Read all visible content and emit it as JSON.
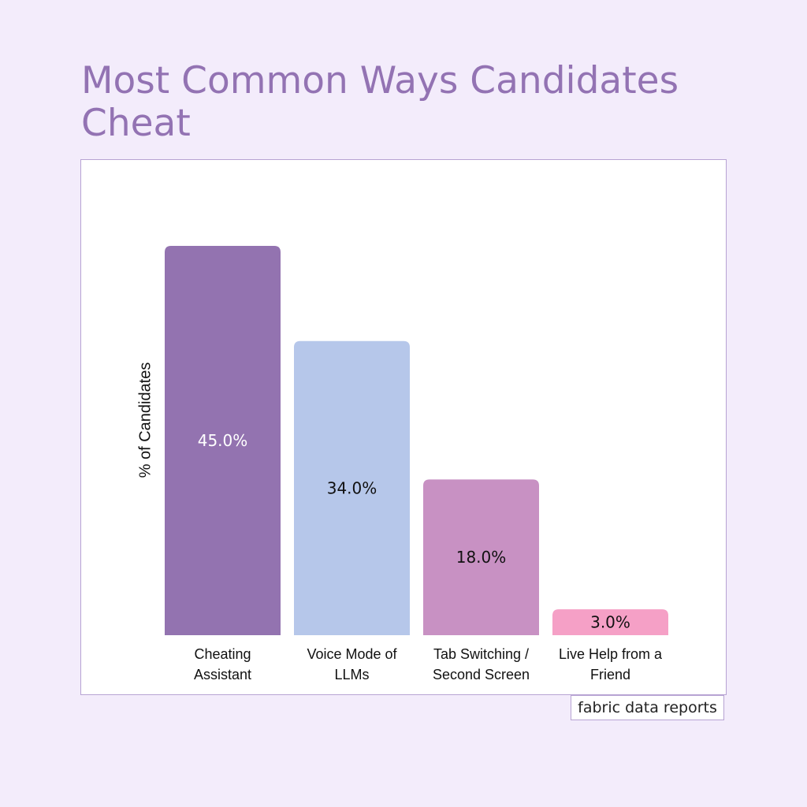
{
  "page": {
    "title": "Most Common Ways Candidates Cheat",
    "footer": "fabric data reports"
  },
  "chart_data": {
    "type": "bar",
    "title": "Most Common Ways Candidates Cheat",
    "xlabel": "",
    "ylabel": "% of Candidates",
    "ylim": [
      0,
      45
    ],
    "grid": false,
    "categories": [
      [
        "Cheating",
        "Assistant"
      ],
      [
        "Voice Mode of",
        "LLMs"
      ],
      [
        "Tab Switching /",
        "Second Screen"
      ],
      [
        "Live Help from a",
        "Friend"
      ]
    ],
    "values": [
      45.0,
      34.0,
      18.0,
      3.0
    ],
    "data_labels": [
      "45.0%",
      "34.0%",
      "18.0%",
      "3.0%"
    ],
    "colors": [
      "#9373b0",
      "#b6c7ea",
      "#c891c3",
      "#f5a0c6"
    ],
    "label_colors": [
      "#ffffff",
      "#111111",
      "#111111",
      "#111111"
    ]
  }
}
